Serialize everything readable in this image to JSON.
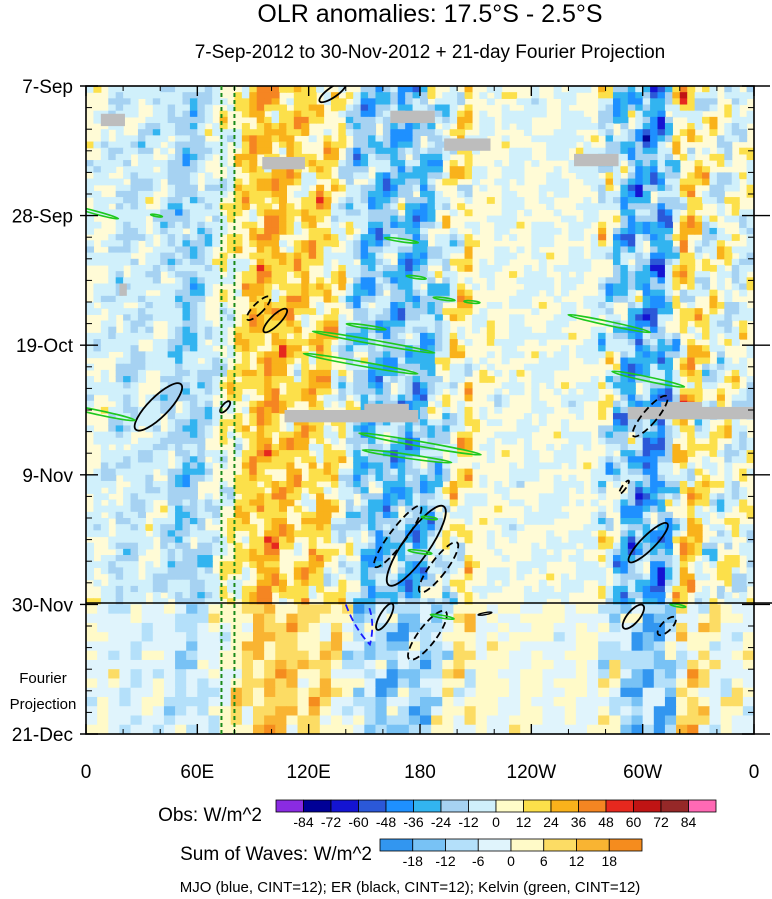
{
  "chart_data": {
    "type": "heatmap",
    "title": "OLR anomalies: 17.5°S - 2.5°S",
    "subtitle": "7-Sep-2012 to 30-Nov-2012 + 21-day Fourier Projection",
    "xlabel": "",
    "ylabel": "",
    "x_ticks": [
      "0",
      "60E",
      "120E",
      "180",
      "120W",
      "60W",
      "0"
    ],
    "x_tick_lon": [
      0,
      60,
      120,
      180,
      240,
      300,
      360
    ],
    "y_ticks": [
      "7-Sep",
      "28-Sep",
      "19-Oct",
      "9-Nov",
      "30-Nov",
      "21-Dec"
    ],
    "y_tick_day": [
      0,
      21,
      42,
      63,
      84,
      105
    ],
    "observation_end_day": 84,
    "total_days": 105,
    "projection_label": [
      "Fourier",
      "Projection"
    ],
    "obs_colorbar": {
      "label": "Obs: W/m^2",
      "levels": [
        "-84",
        "-72",
        "-60",
        "-48",
        "-36",
        "-24",
        "-12",
        "0",
        "12",
        "24",
        "36",
        "48",
        "60",
        "72",
        "84"
      ],
      "colors": [
        "#8a2be2",
        "#000096",
        "#1414d2",
        "#2b58d8",
        "#1e90ff",
        "#32b4f0",
        "#a6d2f2",
        "#d0f0fb",
        "#fffdc8",
        "#fce04a",
        "#f9b21b",
        "#f58522",
        "#e6281e",
        "#c01414",
        "#962828",
        "#ff69b4"
      ]
    },
    "waves_colorbar": {
      "label": "Sum of Waves: W/m^2",
      "levels": [
        "-18",
        "-12",
        "-6",
        "0",
        "6",
        "12",
        "18"
      ],
      "colors": [
        "#3296f0",
        "#78c2f5",
        "#b4e0fa",
        "#e0f4fc",
        "#fffac8",
        "#fcdc64",
        "#f9b432",
        "#f58c1e"
      ]
    },
    "legend_text": "MJO (blue, CINT=12); ER (black, CINT=12); Kelvin (green, CINT=12)",
    "series_colors": {
      "mjo": "#1a1aff",
      "er": "#000000",
      "kelvin": "#1ec81e",
      "marker": "#1a8a1a"
    },
    "reference_lines_lon": [
      73,
      80
    ]
  }
}
